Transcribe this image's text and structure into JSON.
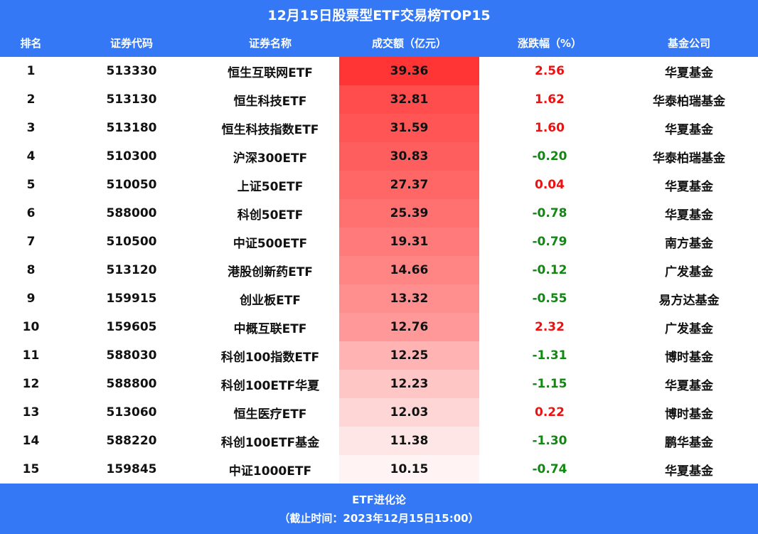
{
  "title": "12月15日股票型ETF交易榜TOP15",
  "columns": [
    "排名",
    "证券代码",
    "证券名称",
    "成交额（亿元）",
    "涨跌幅（%）",
    "基金公司"
  ],
  "colors": {
    "header_bg": "#3478f6",
    "positive": "#ee1111",
    "negative": "#118811",
    "heat_max": "#ff3333",
    "heat_min": "#fff5f5"
  },
  "rows": [
    {
      "rank": "1",
      "code": "513330",
      "name": "恒生互联网ETF",
      "volume": "39.36",
      "change": "2.56",
      "company": "华夏基金"
    },
    {
      "rank": "2",
      "code": "513130",
      "name": "恒生科技ETF",
      "volume": "32.81",
      "change": "1.62",
      "company": "华泰柏瑞基金"
    },
    {
      "rank": "3",
      "code": "513180",
      "name": "恒生科技指数ETF",
      "volume": "31.59",
      "change": "1.60",
      "company": "华夏基金"
    },
    {
      "rank": "4",
      "code": "510300",
      "name": "沪深300ETF",
      "volume": "30.83",
      "change": "-0.20",
      "company": "华泰柏瑞基金"
    },
    {
      "rank": "5",
      "code": "510050",
      "name": "上证50ETF",
      "volume": "27.37",
      "change": "0.04",
      "company": "华夏基金"
    },
    {
      "rank": "6",
      "code": "588000",
      "name": "科创50ETF",
      "volume": "25.39",
      "change": "-0.78",
      "company": "华夏基金"
    },
    {
      "rank": "7",
      "code": "510500",
      "name": "中证500ETF",
      "volume": "19.31",
      "change": "-0.79",
      "company": "南方基金"
    },
    {
      "rank": "8",
      "code": "513120",
      "name": "港股创新药ETF",
      "volume": "14.66",
      "change": "-0.12",
      "company": "广发基金"
    },
    {
      "rank": "9",
      "code": "159915",
      "name": "创业板ETF",
      "volume": "13.32",
      "change": "-0.55",
      "company": "易方达基金"
    },
    {
      "rank": "10",
      "code": "159605",
      "name": "中概互联ETF",
      "volume": "12.76",
      "change": "2.32",
      "company": "广发基金"
    },
    {
      "rank": "11",
      "code": "588030",
      "name": "科创100指数ETF",
      "volume": "12.25",
      "change": "-1.31",
      "company": "博时基金"
    },
    {
      "rank": "12",
      "code": "588800",
      "name": "科创100ETF华夏",
      "volume": "12.23",
      "change": "-1.15",
      "company": "华夏基金"
    },
    {
      "rank": "13",
      "code": "513060",
      "name": "恒生医疗ETF",
      "volume": "12.03",
      "change": "0.22",
      "company": "博时基金"
    },
    {
      "rank": "14",
      "code": "588220",
      "name": "科创100ETF基金",
      "volume": "11.38",
      "change": "-1.30",
      "company": "鹏华基金"
    },
    {
      "rank": "15",
      "code": "159845",
      "name": "中证1000ETF",
      "volume": "10.15",
      "change": "-0.74",
      "company": "华夏基金"
    }
  ],
  "heat_colors": [
    "#ff3535",
    "#ff4c4c",
    "#ff5555",
    "#ff5e5e",
    "#ff6767",
    "#ff7070",
    "#ff7a7a",
    "#ff8484",
    "#ff8e8e",
    "#ff9999",
    "#ffb3b3",
    "#ffc6c6",
    "#ffd6d6",
    "#ffe6e6",
    "#fff3f3"
  ],
  "footer": {
    "source": "ETF进化论",
    "cutoff": "（截止时间：2023年12月15日15:00）"
  },
  "chart_data": {
    "type": "table",
    "title": "12月15日股票型ETF交易榜TOP15",
    "columns": [
      "排名",
      "证券代码",
      "证券名称",
      "成交额（亿元）",
      "涨跌幅（%）",
      "基金公司"
    ],
    "categories": [
      "恒生互联网ETF",
      "恒生科技ETF",
      "恒生科技指数ETF",
      "沪深300ETF",
      "上证50ETF",
      "科创50ETF",
      "中证500ETF",
      "港股创新药ETF",
      "创业板ETF",
      "中概互联ETF",
      "科创100指数ETF",
      "科创100ETF华夏",
      "恒生医疗ETF",
      "科创100ETF基金",
      "中证1000ETF"
    ],
    "series": [
      {
        "name": "成交额（亿元）",
        "values": [
          39.36,
          32.81,
          31.59,
          30.83,
          27.37,
          25.39,
          19.31,
          14.66,
          13.32,
          12.76,
          12.25,
          12.23,
          12.03,
          11.38,
          10.15
        ]
      },
      {
        "name": "涨跌幅（%）",
        "values": [
          2.56,
          1.62,
          1.6,
          -0.2,
          0.04,
          -0.78,
          -0.79,
          -0.12,
          -0.55,
          2.32,
          -1.31,
          -1.15,
          0.22,
          -1.3,
          -0.74
        ]
      }
    ],
    "codes": [
      "513330",
      "513130",
      "513180",
      "510300",
      "510050",
      "588000",
      "510500",
      "513120",
      "159915",
      "159605",
      "588030",
      "588800",
      "513060",
      "588220",
      "159845"
    ],
    "companies": [
      "华夏基金",
      "华泰柏瑞基金",
      "华夏基金",
      "华泰柏瑞基金",
      "华夏基金",
      "华夏基金",
      "南方基金",
      "广发基金",
      "易方达基金",
      "广发基金",
      "博时基金",
      "华夏基金",
      "博时基金",
      "鹏华基金",
      "华夏基金"
    ],
    "footnote": "ETF进化论（截止时间：2023年12月15日15:00）"
  }
}
